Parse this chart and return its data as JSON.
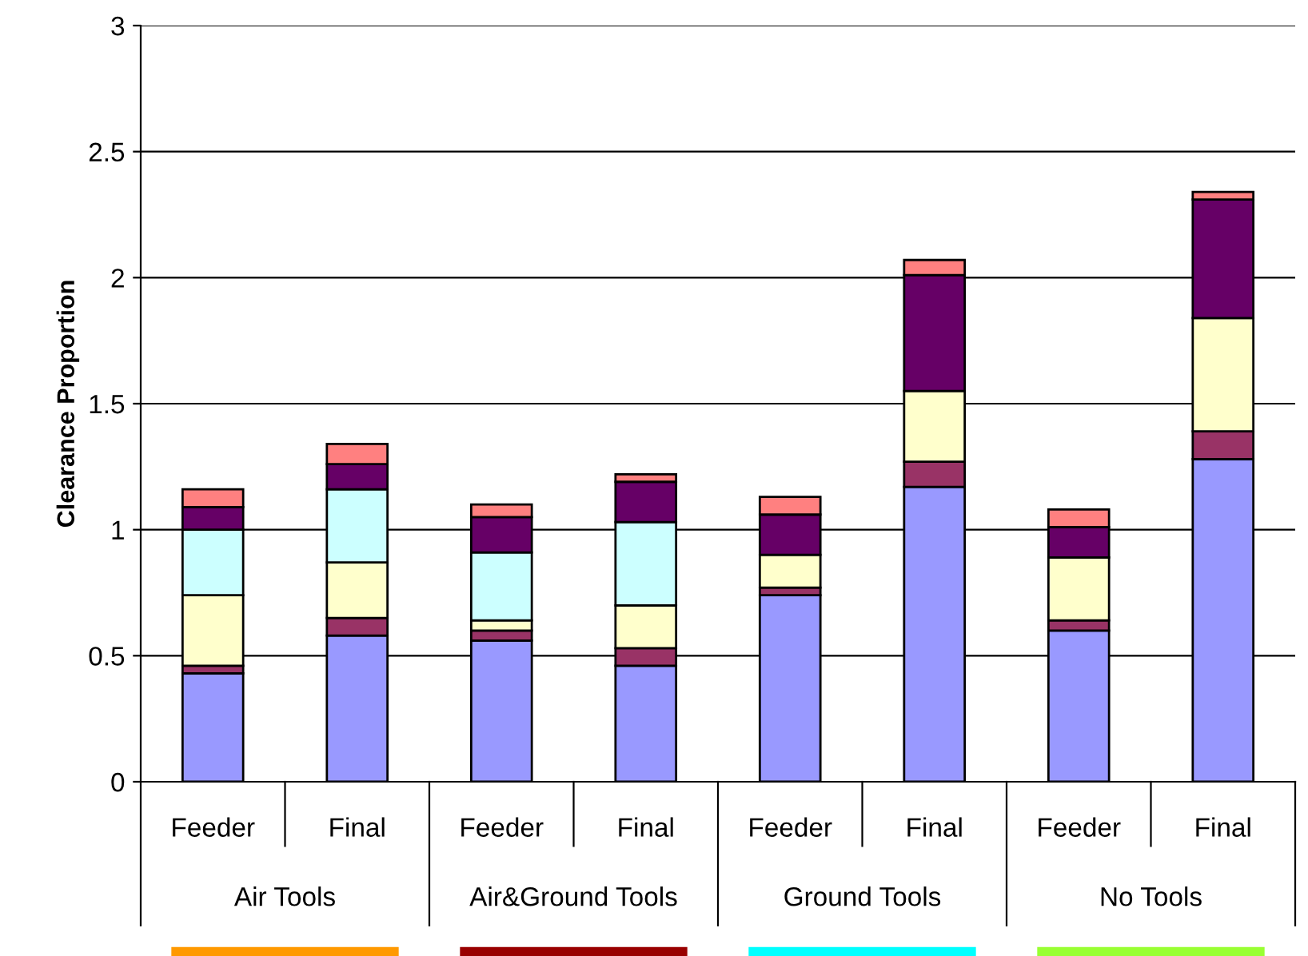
{
  "chart_data": {
    "type": "bar",
    "stacked": true,
    "ylabel": "Clearance Proportion",
    "categories": [
      "Feeder",
      "Final",
      "Feeder",
      "Final",
      "Feeder",
      "Final",
      "Feeder",
      "Final"
    ],
    "annotations": [
      "Air Tools",
      "Air&Ground Tools",
      "Ground Tools",
      "No Tools"
    ],
    "series": [
      {
        "color": "#9999ff",
        "values": [
          0.43,
          0.58,
          0.56,
          0.46,
          0.74,
          1.17,
          0.6,
          1.28
        ]
      },
      {
        "color": "#993366",
        "values": [
          0.03,
          0.07,
          0.04,
          0.07,
          0.03,
          0.1,
          0.04,
          0.11
        ]
      },
      {
        "color": "#ffffcc",
        "values": [
          0.28,
          0.22,
          0.04,
          0.17,
          0.13,
          0.28,
          0.25,
          0.45
        ]
      },
      {
        "color": "#ccffff",
        "values": [
          0.26,
          0.29,
          0.27,
          0.33,
          null,
          null,
          null,
          null
        ]
      },
      {
        "color": "#660066",
        "values": [
          0.09,
          0.1,
          0.14,
          0.16,
          0.16,
          0.46,
          0.12,
          0.47
        ]
      },
      {
        "color": "#ff8080",
        "values": [
          0.07,
          0.08,
          0.05,
          0.03,
          0.07,
          0.06,
          0.07,
          0.03
        ]
      }
    ],
    "ylim": [
      0,
      3
    ],
    "yticks": [
      0,
      0.5,
      1,
      1.5,
      2,
      2.5,
      3
    ],
    "grid": "y",
    "legend": false
  }
}
